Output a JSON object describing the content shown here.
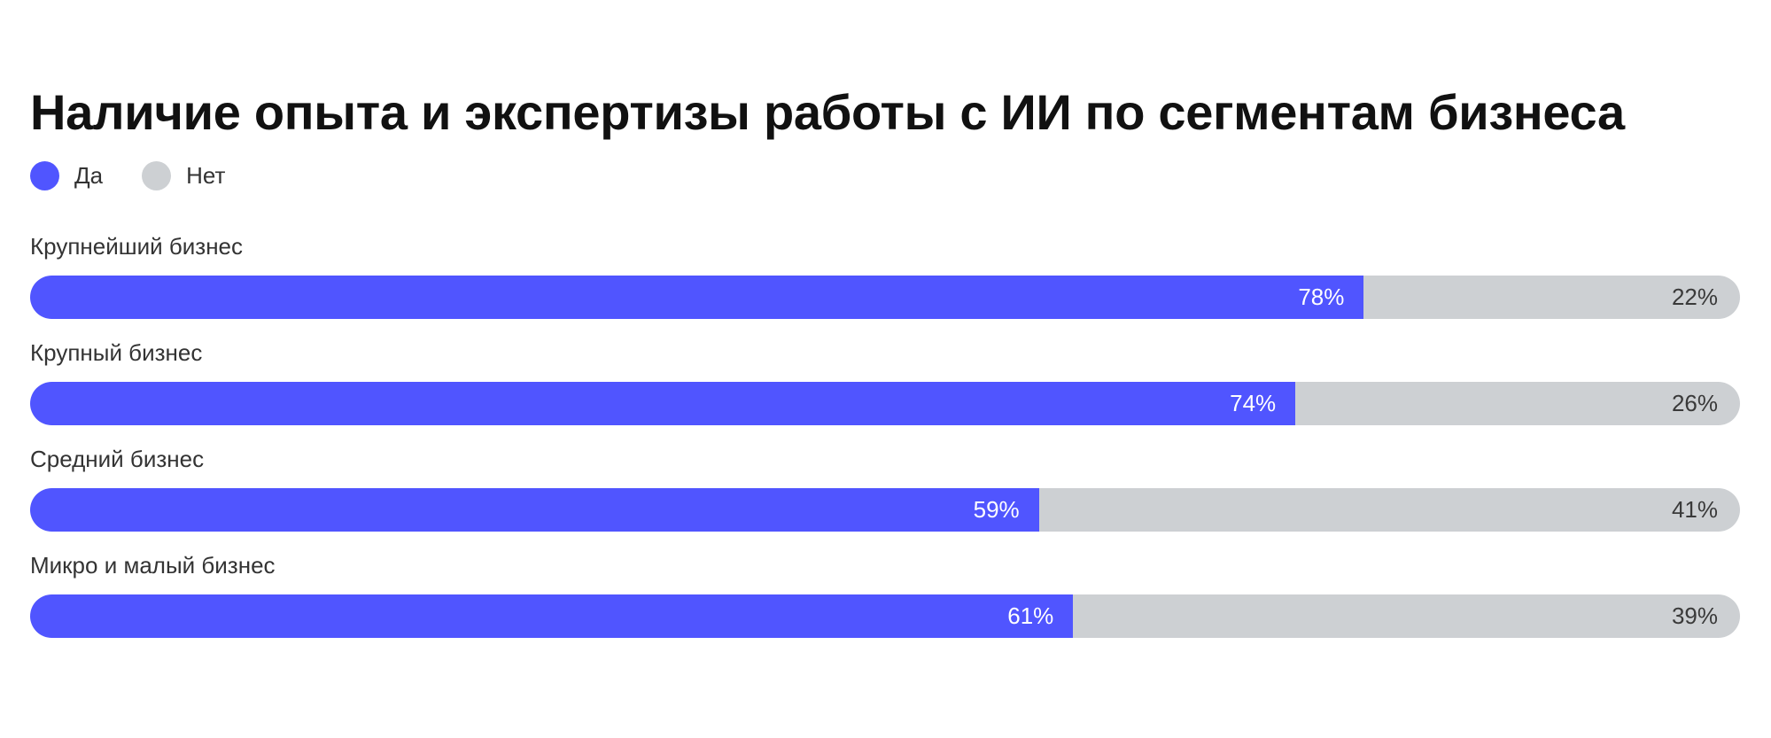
{
  "chart_data": {
    "type": "bar",
    "orientation": "horizontal",
    "stacked": true,
    "title": "Наличие опыта и экспертизы работы с ИИ по сегментам бизнеса",
    "legend_placement": "top-left",
    "categories": [
      "Крупнейший бизнес",
      "Крупный бизнес",
      "Средний бизнес",
      "Микро и малый бизнес"
    ],
    "series": [
      {
        "name": "Да",
        "color": "#5055FF",
        "values": [
          78,
          74,
          59,
          61
        ],
        "labels": [
          "78%",
          "74%",
          "59%",
          "61%"
        ]
      },
      {
        "name": "Нет",
        "color": "#CDD0D3",
        "values": [
          22,
          26,
          41,
          39
        ],
        "labels": [
          "22%",
          "26%",
          "41%",
          "39%"
        ]
      }
    ],
    "xlim": [
      0,
      100
    ],
    "grid": false
  }
}
